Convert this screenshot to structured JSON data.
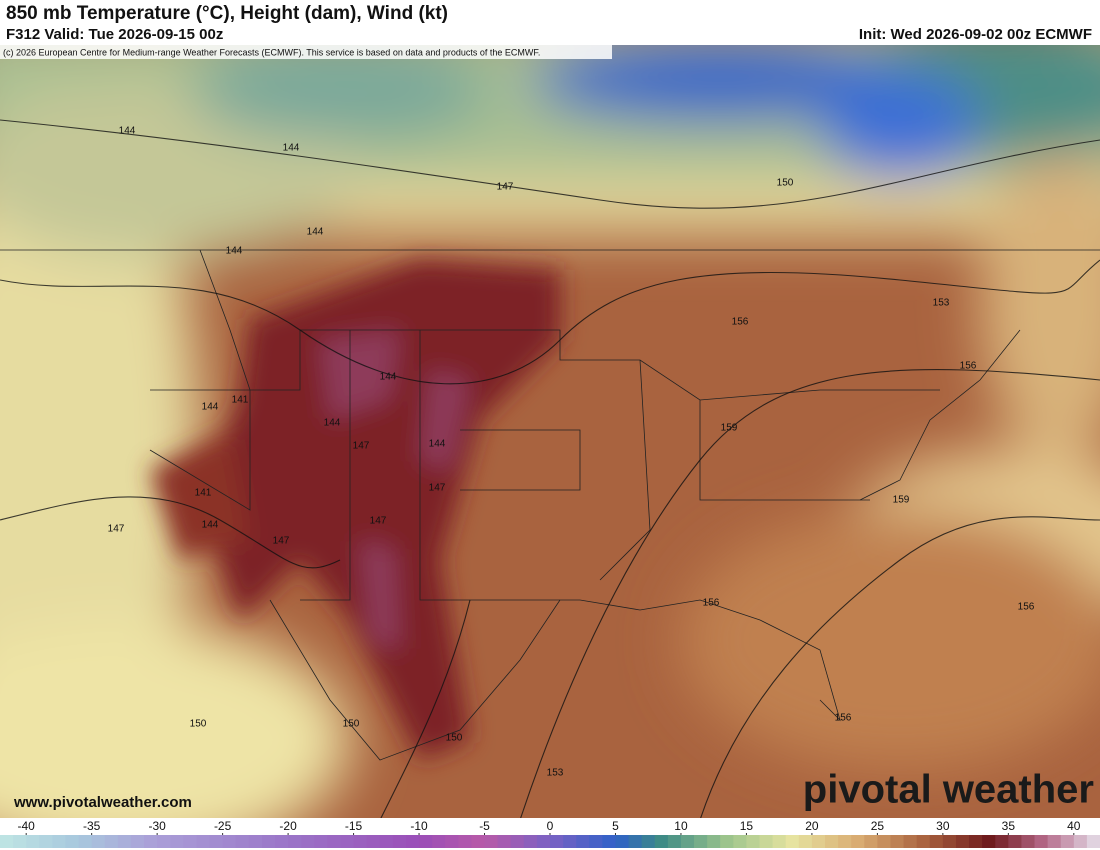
{
  "header": {
    "title": "850 mb Temperature (°C), Height (dam), Wind (kt)",
    "valid": "F312 Valid: Tue 2026-09-15 00z",
    "init": "Init: Wed 2026-09-02 00z ECMWF",
    "copyright": "(c) 2026 European Centre for Medium-range Weather Forecasts (ECMWF). This service is based on data and products of the ECMWF."
  },
  "contour_labels": [
    "144",
    "144",
    "147",
    "144",
    "144",
    "150",
    "153",
    "156",
    "156",
    "144",
    "141",
    "144",
    "144",
    "147",
    "144",
    "159",
    "141",
    "147",
    "144",
    "147",
    "147",
    "147",
    "159",
    "156",
    "156",
    "150",
    "150",
    "150",
    "153",
    "156"
  ],
  "website": "www.pivotalweather.com",
  "watermark": "pivotal weather",
  "colorbar": {
    "lim": [
      -42,
      42
    ],
    "ticks": [
      -40,
      -35,
      -30,
      -25,
      -20,
      -15,
      -10,
      -5,
      0,
      5,
      10,
      15,
      20,
      25,
      30,
      35,
      40
    ]
  }
}
